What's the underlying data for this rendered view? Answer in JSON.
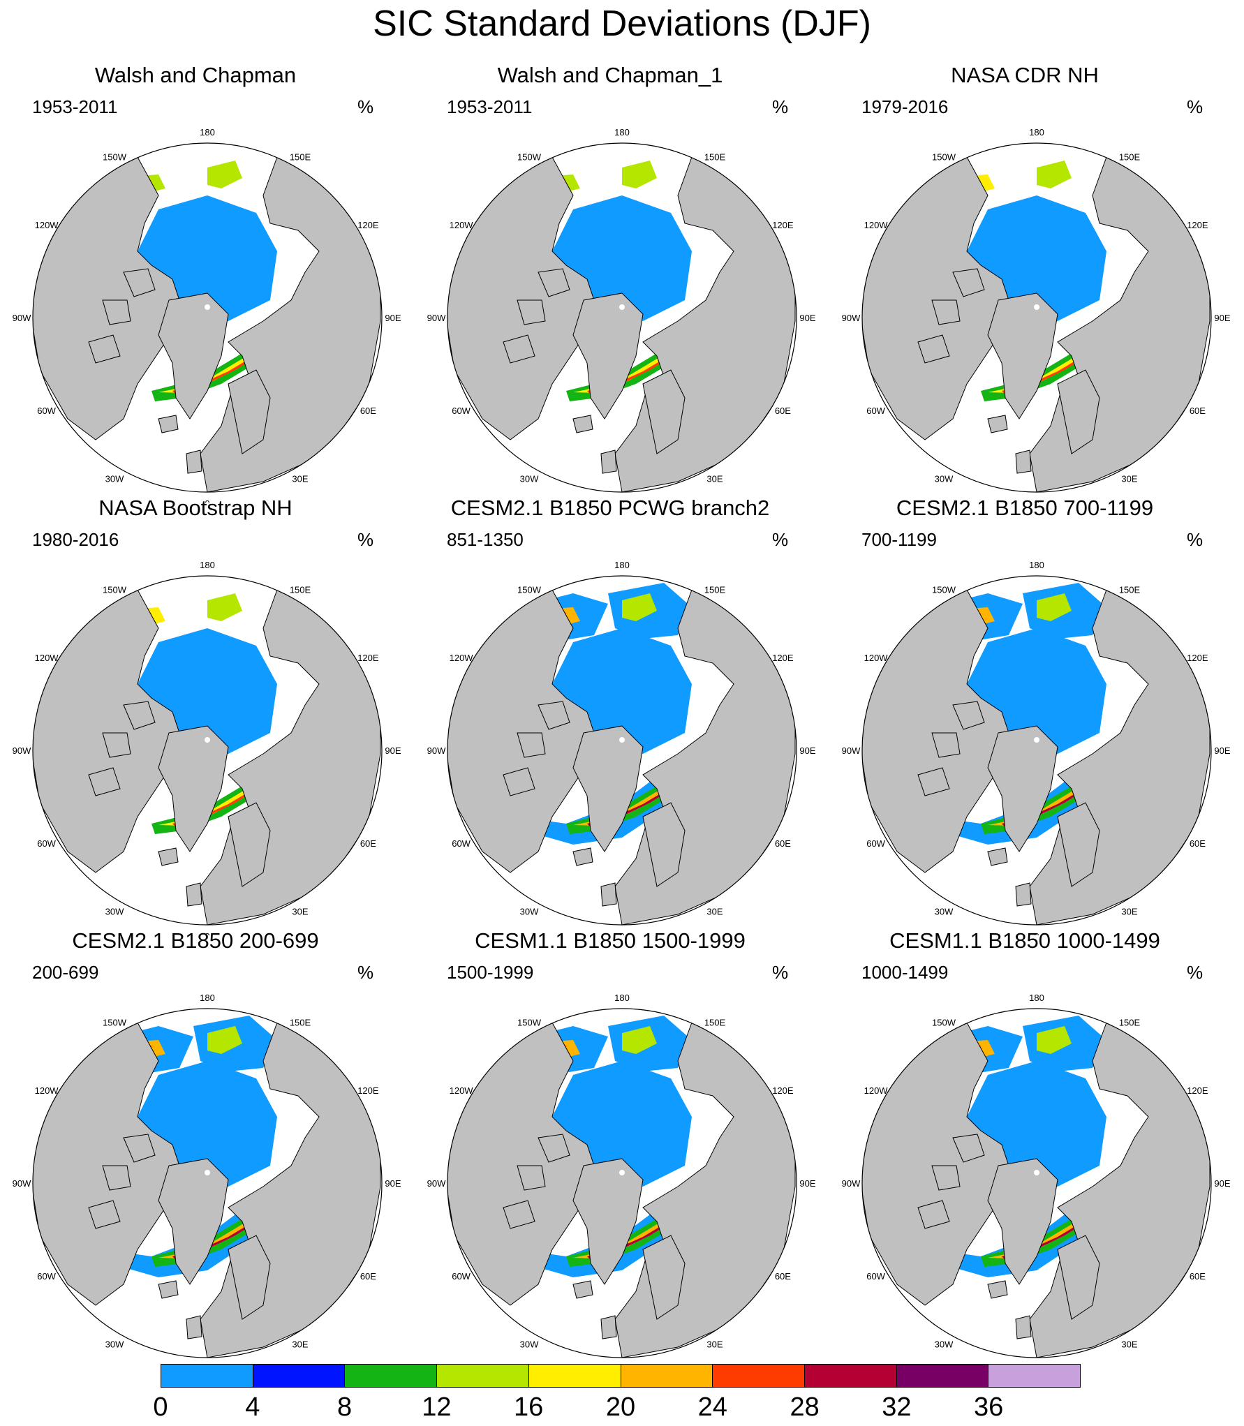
{
  "title": "SIC Standard Deviations (DJF)",
  "lon_labels": {
    "top": "180",
    "bottom": "0",
    "left_upper": "150W",
    "left_mid1": "120W",
    "left_mid2": "90W",
    "left_mid3": "60W",
    "left_lower": "30W",
    "right_upper": "150E",
    "right_mid1": "120E",
    "right_mid2": "90E",
    "right_mid3": "60E",
    "right_lower": "30E"
  },
  "colors": {
    "land": "#c0c0c0",
    "ocean": "#ffffff",
    "levels": [
      "#0f9bff",
      "#0014ff",
      "#14b414",
      "#b4e600",
      "#ffee00",
      "#ffb400",
      "#ff3c00",
      "#b40032",
      "#780064",
      "#c8a0dc"
    ]
  },
  "colorbar": {
    "tick_labels": [
      "0",
      "4",
      "8",
      "12",
      "16",
      "20",
      "24",
      "28",
      "32",
      "36"
    ]
  },
  "panels": [
    {
      "title": "Walsh and Chapman",
      "years": "1953-2011",
      "unit": "%",
      "ice_extent": "small",
      "central_ice": 1,
      "model": false
    },
    {
      "title": "Walsh and Chapman_1",
      "years": "1953-2011",
      "unit": "%",
      "ice_extent": "small",
      "central_ice": 1,
      "model": false
    },
    {
      "title": "NASA CDR NH",
      "years": "1979-2016",
      "unit": "%",
      "ice_extent": "medium",
      "central_ice": 1,
      "model": false
    },
    {
      "title": "NASA Bootstrap NH",
      "years": "1980-2016",
      "unit": "%",
      "ice_extent": "medium",
      "central_ice": 1,
      "model": false
    },
    {
      "title": "CESM2.1 B1850 PCWG branch2",
      "years": "851-1350",
      "unit": "%",
      "ice_extent": "large",
      "central_ice": 1,
      "model": true
    },
    {
      "title": "CESM2.1 B1850 700-1199",
      "years": "700-1199",
      "unit": "%",
      "ice_extent": "large",
      "central_ice": 1,
      "model": true
    },
    {
      "title": "CESM2.1 B1850 200-699",
      "years": "200-699",
      "unit": "%",
      "ice_extent": "large",
      "central_ice": 1,
      "model": true
    },
    {
      "title": "CESM1.1 B1850 1500-1999",
      "years": "1500-1999",
      "unit": "%",
      "ice_extent": "large",
      "central_ice": 1,
      "model": true
    },
    {
      "title": "CESM1.1 B1850 1000-1499",
      "years": "1000-1499",
      "unit": "%",
      "ice_extent": "large",
      "central_ice": 1,
      "model": true
    }
  ]
}
